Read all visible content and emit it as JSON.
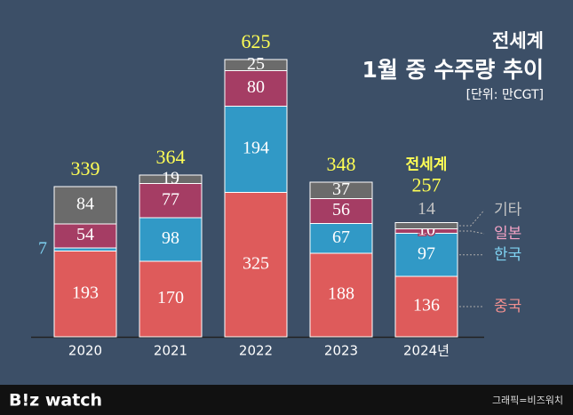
{
  "chart_data": {
    "type": "stacked-bar",
    "title": "전세계",
    "subtitle": "1월 중 수주량 추이",
    "unit": "[단위: 만CGT]",
    "categories": [
      "2020",
      "2021",
      "2022",
      "2023",
      "2024년"
    ],
    "series": [
      {
        "name": "중국",
        "color": "#de5b5b",
        "label_color": "#f19090",
        "values": [
          193,
          170,
          325,
          188,
          136
        ]
      },
      {
        "name": "한국",
        "color": "#3199c6",
        "label_color": "#7fd3f3",
        "values": [
          7,
          98,
          194,
          67,
          97
        ]
      },
      {
        "name": "일본",
        "color": "#a53d64",
        "label_color": "#f4a3c6",
        "values": [
          54,
          77,
          80,
          56,
          10
        ]
      },
      {
        "name": "기타",
        "color": "#6b6b6b",
        "label_color": "#c4c4c4",
        "values": [
          84,
          19,
          25,
          37,
          14
        ]
      }
    ],
    "totals": [
      339,
      364,
      625,
      348,
      257
    ],
    "annotation": {
      "category": 4,
      "text": "전세계"
    },
    "footer": {
      "logo": "B!z watch",
      "credit": "그래픽=비즈워치"
    }
  }
}
